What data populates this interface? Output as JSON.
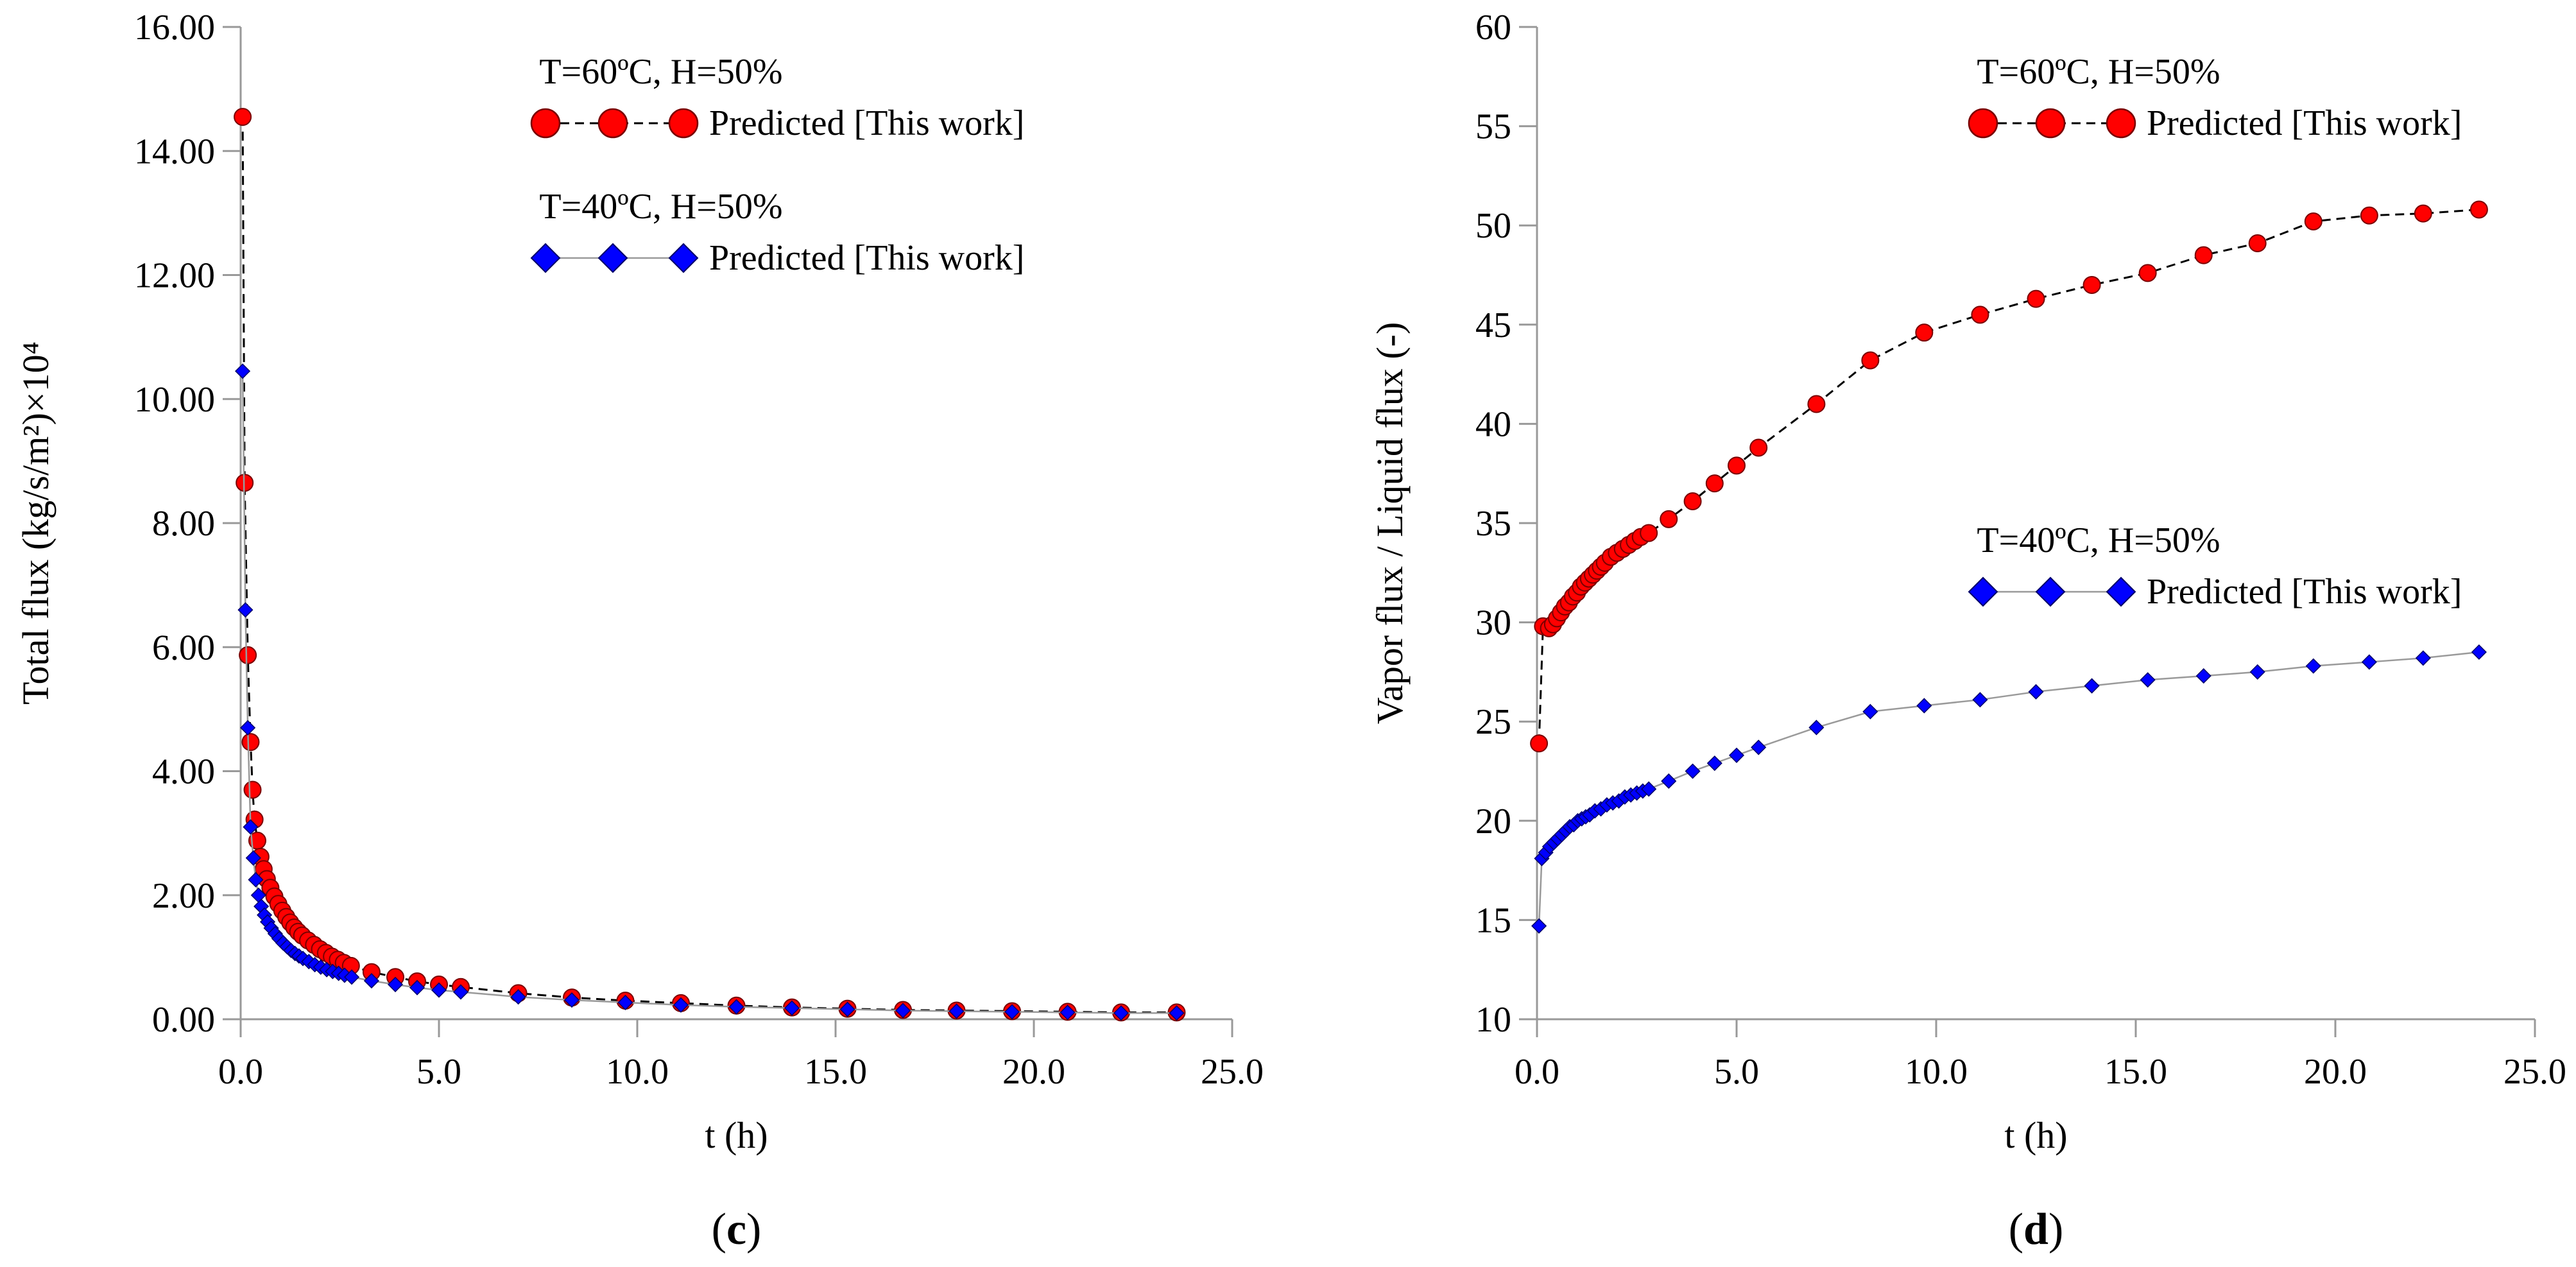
{
  "chart_data": [
    {
      "type": "scatter",
      "panel_label": "c",
      "xlabel": "t (h)",
      "ylabel": "Total flux (kg/s/m²)×10⁴",
      "xlim": [
        0,
        25
      ],
      "ylim": [
        0,
        16
      ],
      "x_ticks": [
        "0.0",
        "5.0",
        "10.0",
        "15.0",
        "20.0",
        "25.0"
      ],
      "y_ticks": [
        "0.00",
        "2.00",
        "4.00",
        "6.00",
        "8.00",
        "10.00",
        "12.00",
        "14.00",
        "16.00"
      ],
      "legend": [
        {
          "title": "T=60ºC, H=50%",
          "label": "Predicted [This work]",
          "marker": "circle",
          "color": "#ff0000",
          "line": "dashed"
        },
        {
          "title": "T=40ºC, H=50%",
          "label": "Predicted [This work]",
          "marker": "diamond",
          "color": "#0000ff",
          "line": "solid"
        }
      ],
      "series": [
        {
          "name": "T=60ºC, H=50%",
          "marker": "circle",
          "color": "#ff0000",
          "line": "dashed",
          "x": [
            0.05,
            0.1,
            0.18,
            0.25,
            0.3,
            0.35,
            0.42,
            0.5,
            0.58,
            0.66,
            0.75,
            0.85,
            0.95,
            1.05,
            1.15,
            1.25,
            1.35,
            1.45,
            1.55,
            1.7,
            1.85,
            2.0,
            2.15,
            2.3,
            2.45,
            2.6,
            2.78,
            3.3,
            3.9,
            4.45,
            5.0,
            5.55,
            7.0,
            8.35,
            9.7,
            11.1,
            12.5,
            13.9,
            15.3,
            16.7,
            18.05,
            19.45,
            20.85,
            22.2,
            23.6
          ],
          "y": [
            14.55,
            8.65,
            5.87,
            4.47,
            3.7,
            3.22,
            2.88,
            2.62,
            2.42,
            2.26,
            2.12,
            1.98,
            1.86,
            1.75,
            1.65,
            1.56,
            1.48,
            1.41,
            1.35,
            1.27,
            1.2,
            1.13,
            1.07,
            1.01,
            0.96,
            0.91,
            0.86,
            0.76,
            0.68,
            0.61,
            0.56,
            0.52,
            0.42,
            0.35,
            0.3,
            0.26,
            0.22,
            0.19,
            0.17,
            0.15,
            0.14,
            0.13,
            0.12,
            0.11,
            0.11
          ]
        },
        {
          "name": "T=40ºC, H=50%",
          "marker": "diamond",
          "color": "#0000ff",
          "line": "solid",
          "x": [
            0.05,
            0.12,
            0.18,
            0.25,
            0.32,
            0.38,
            0.45,
            0.52,
            0.6,
            0.68,
            0.77,
            0.87,
            0.97,
            1.07,
            1.17,
            1.27,
            1.37,
            1.47,
            1.57,
            1.72,
            1.87,
            2.02,
            2.17,
            2.32,
            2.47,
            2.62,
            2.8,
            3.3,
            3.9,
            4.45,
            5.0,
            5.55,
            7.0,
            8.35,
            9.7,
            11.1,
            12.5,
            13.9,
            15.3,
            16.7,
            18.05,
            19.45,
            20.85,
            22.2,
            23.6
          ],
          "y": [
            10.45,
            6.6,
            4.7,
            3.1,
            2.6,
            2.25,
            2.0,
            1.82,
            1.68,
            1.57,
            1.47,
            1.38,
            1.3,
            1.23,
            1.17,
            1.11,
            1.06,
            1.02,
            0.98,
            0.93,
            0.88,
            0.84,
            0.8,
            0.77,
            0.74,
            0.71,
            0.68,
            0.62,
            0.56,
            0.51,
            0.47,
            0.44,
            0.36,
            0.31,
            0.27,
            0.23,
            0.2,
            0.18,
            0.16,
            0.14,
            0.13,
            0.12,
            0.11,
            0.1,
            0.1
          ]
        }
      ]
    },
    {
      "type": "scatter",
      "panel_label": "d",
      "xlabel": "t (h)",
      "ylabel": "Vapor flux / Liquid flux (-)",
      "xlim": [
        0,
        25
      ],
      "ylim": [
        10,
        60
      ],
      "x_ticks": [
        "0.0",
        "5.0",
        "10.0",
        "15.0",
        "20.0",
        "25.0"
      ],
      "y_ticks": [
        "10",
        "15",
        "20",
        "25",
        "30",
        "35",
        "40",
        "45",
        "50",
        "55",
        "60"
      ],
      "legend": [
        {
          "title": "T=60ºC, H=50%",
          "label": "Predicted [This work]",
          "marker": "circle",
          "color": "#ff0000",
          "line": "dashed"
        },
        {
          "title": "T=40ºC, H=50%",
          "label": "Predicted [This work]",
          "marker": "diamond",
          "color": "#0000ff",
          "line": "solid"
        }
      ],
      "series": [
        {
          "name": "T=60ºC, H=50%",
          "marker": "circle",
          "color": "#ff0000",
          "line": "dashed",
          "x": [
            0.05,
            0.15,
            0.3,
            0.4,
            0.5,
            0.6,
            0.7,
            0.8,
            0.9,
            1.0,
            1.1,
            1.2,
            1.3,
            1.4,
            1.5,
            1.6,
            1.7,
            1.85,
            2.0,
            2.15,
            2.3,
            2.45,
            2.6,
            2.8,
            3.3,
            3.9,
            4.45,
            5.0,
            5.55,
            7.0,
            8.35,
            9.7,
            11.1,
            12.5,
            13.9,
            15.3,
            16.7,
            18.05,
            19.45,
            20.85,
            22.2,
            23.6
          ],
          "y": [
            23.9,
            29.8,
            29.7,
            29.9,
            30.2,
            30.5,
            30.8,
            31.0,
            31.3,
            31.5,
            31.8,
            32.0,
            32.2,
            32.4,
            32.6,
            32.8,
            33.0,
            33.3,
            33.5,
            33.7,
            33.9,
            34.1,
            34.3,
            34.5,
            35.2,
            36.1,
            37.0,
            37.9,
            38.8,
            41.0,
            43.2,
            44.6,
            45.5,
            46.3,
            47.0,
            47.6,
            48.5,
            49.1,
            50.2,
            50.5,
            50.6,
            50.8
          ]
        },
        {
          "name": "T=40ºC, H=50%",
          "marker": "diamond",
          "color": "#0000ff",
          "line": "solid",
          "x": [
            0.05,
            0.12,
            0.22,
            0.32,
            0.42,
            0.52,
            0.62,
            0.72,
            0.82,
            0.92,
            1.02,
            1.12,
            1.22,
            1.32,
            1.45,
            1.6,
            1.75,
            1.9,
            2.05,
            2.2,
            2.35,
            2.5,
            2.65,
            2.8,
            3.3,
            3.9,
            4.45,
            5.0,
            5.55,
            7.0,
            8.35,
            9.7,
            11.1,
            12.5,
            13.9,
            15.3,
            16.7,
            18.05,
            19.45,
            20.85,
            22.2,
            23.6
          ],
          "y": [
            14.7,
            18.1,
            18.4,
            18.7,
            18.9,
            19.1,
            19.3,
            19.5,
            19.7,
            19.8,
            20.0,
            20.1,
            20.2,
            20.3,
            20.5,
            20.6,
            20.8,
            20.9,
            21.0,
            21.2,
            21.3,
            21.4,
            21.5,
            21.6,
            22.0,
            22.5,
            22.9,
            23.3,
            23.7,
            24.7,
            25.5,
            25.8,
            26.1,
            26.5,
            26.8,
            27.1,
            27.3,
            27.5,
            27.8,
            28.0,
            28.2,
            28.5
          ]
        }
      ]
    }
  ]
}
